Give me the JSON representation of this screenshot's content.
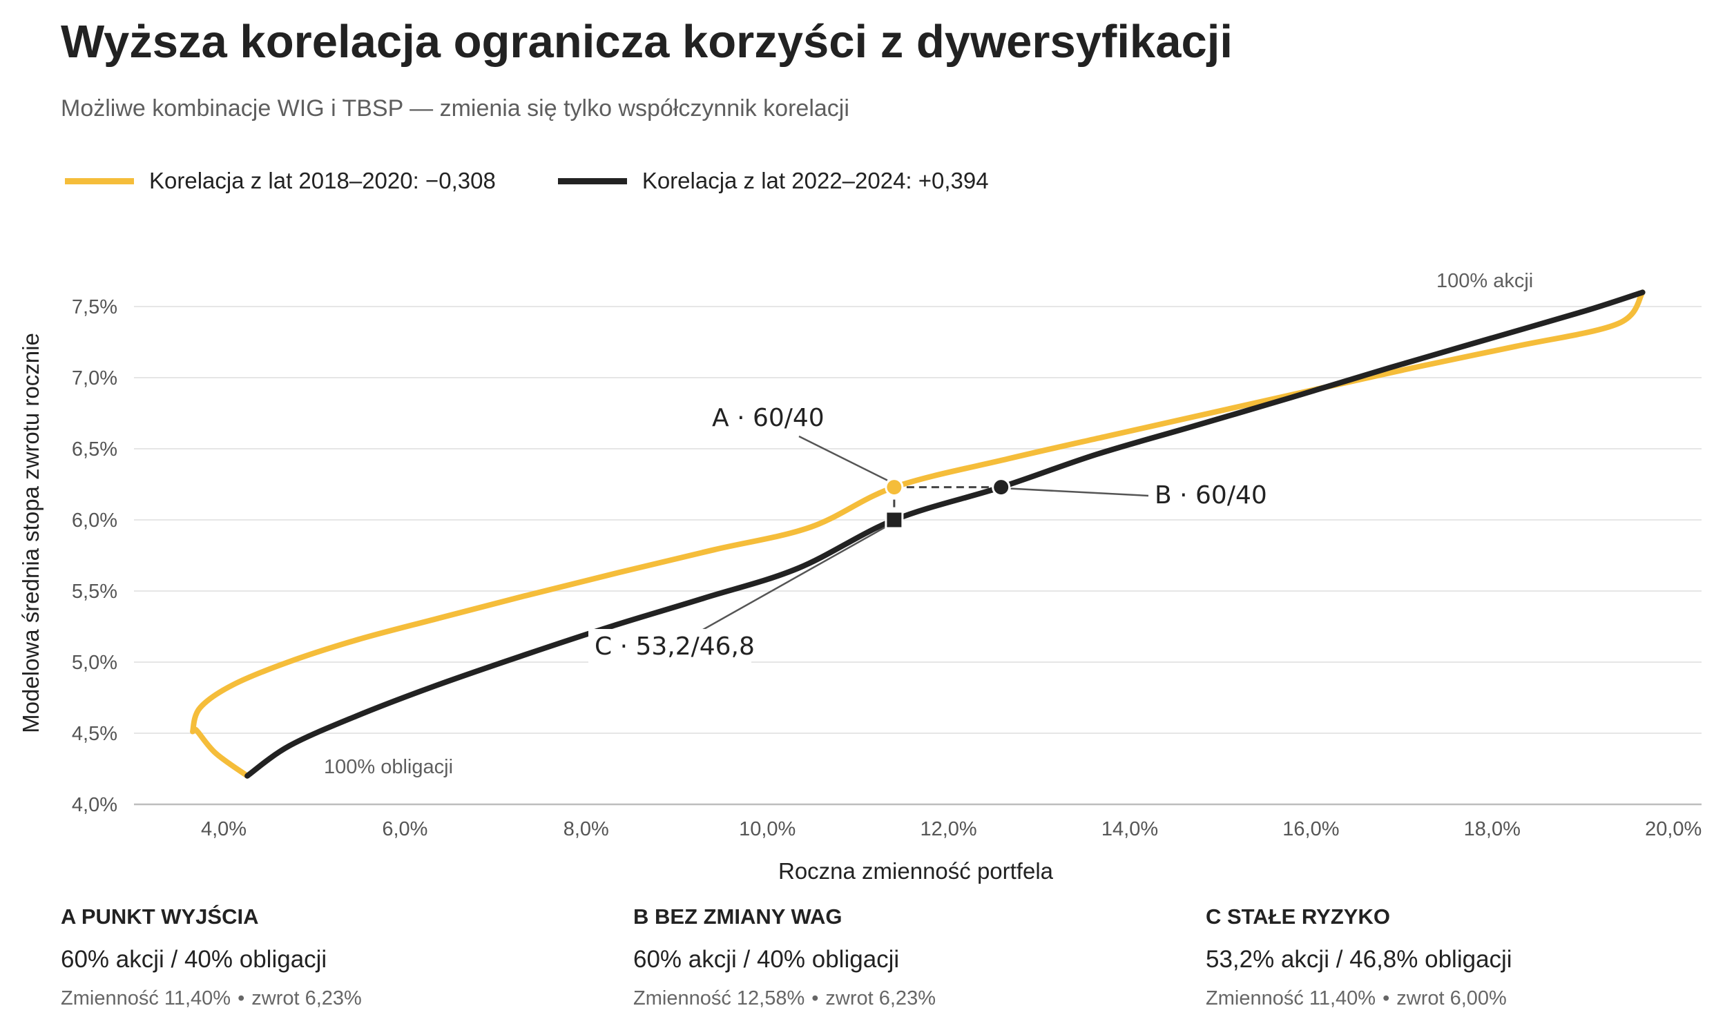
{
  "title": "Wyższa korelacja ogranicza korzyści z dywersyfikacji",
  "subtitle": "Możliwe kombinacje WIG i TBSP — zmienia się tylko współczynnik korelacji",
  "colors": {
    "yellow": "#f5bd3a",
    "dark": "#222222",
    "grid": "#e6e6e6",
    "axis": "#bdbdbd",
    "muted": "#5e5e5e"
  },
  "legend": [
    {
      "label": "Korelacja z lat 2018–2020: −0,308",
      "color": "#f5bd3a"
    },
    {
      "label": "Korelacja z lat 2022–2024: +0,394",
      "color": "#222222"
    }
  ],
  "chart_data": {
    "type": "line",
    "xlabel": "Roczna zmienność portfela",
    "ylabel": "Modelowa średnia stopa zwrotu rocznie",
    "xlim": [
      2.5,
      20.0
    ],
    "ylim": [
      4.0,
      7.85
    ],
    "grid": true,
    "legend_position": "top-left",
    "x_ticks": [
      {
        "value": 4,
        "label": "4,0%"
      },
      {
        "value": 6,
        "label": "6,0%"
      },
      {
        "value": 8,
        "label": "8,0%"
      },
      {
        "value": 10,
        "label": "10,0%"
      },
      {
        "value": 12,
        "label": "12,0%"
      },
      {
        "value": 14,
        "label": "14,0%"
      },
      {
        "value": 16,
        "label": "16,0%"
      },
      {
        "value": 18,
        "label": "18,0%"
      },
      {
        "value": 20,
        "label": "20,0%"
      }
    ],
    "y_ticks": [
      {
        "value": 4.0,
        "label": "4,0%"
      },
      {
        "value": 4.5,
        "label": "4,5%"
      },
      {
        "value": 5.0,
        "label": "5,0%"
      },
      {
        "value": 5.5,
        "label": "5,5%"
      },
      {
        "value": 6.0,
        "label": "6,0%"
      },
      {
        "value": 6.5,
        "label": "6,5%"
      },
      {
        "value": 7.0,
        "label": "7,0%"
      },
      {
        "value": 7.5,
        "label": "7,5%"
      }
    ],
    "series": [
      {
        "name": "Korelacja z lat 2018–2020: −0,308",
        "color": "#f5bd3a",
        "points": [
          [
            4.26,
            4.2
          ],
          [
            3.91,
            4.36
          ],
          [
            3.7,
            4.52
          ],
          [
            3.66,
            4.52
          ],
          [
            3.74,
            4.68
          ],
          [
            4.1,
            4.84
          ],
          [
            4.71,
            5.0
          ],
          [
            5.49,
            5.16
          ],
          [
            6.38,
            5.31
          ],
          [
            7.35,
            5.47
          ],
          [
            8.36,
            5.63
          ],
          [
            9.41,
            5.79
          ],
          [
            10.48,
            5.95
          ],
          [
            11.4,
            6.23
          ],
          [
            12.66,
            6.43
          ],
          [
            13.76,
            6.59
          ],
          [
            14.88,
            6.75
          ],
          [
            16.0,
            6.91
          ],
          [
            17.13,
            7.07
          ],
          [
            18.26,
            7.22
          ],
          [
            19.39,
            7.38
          ],
          [
            19.66,
            7.6
          ]
        ]
      },
      {
        "name": "Korelacja z lat 2022–2024: +0,394",
        "color": "#222222",
        "points": [
          [
            4.26,
            4.2
          ],
          [
            4.72,
            4.41
          ],
          [
            5.46,
            4.62
          ],
          [
            6.32,
            4.83
          ],
          [
            7.27,
            5.04
          ],
          [
            8.27,
            5.25
          ],
          [
            9.3,
            5.45
          ],
          [
            10.34,
            5.66
          ],
          [
            11.4,
            6.0
          ],
          [
            12.58,
            6.23
          ],
          [
            13.63,
            6.46
          ],
          [
            14.71,
            6.66
          ],
          [
            15.78,
            6.86
          ],
          [
            16.87,
            7.07
          ],
          [
            17.95,
            7.27
          ],
          [
            19.03,
            7.47
          ],
          [
            19.66,
            7.6
          ]
        ]
      }
    ],
    "markers": [
      {
        "id": "A",
        "label": "A · 60/40",
        "x": 11.4,
        "y": 6.23,
        "shape": "circle",
        "color": "#f5bd3a"
      },
      {
        "id": "B",
        "label": "B · 60/40",
        "x": 12.58,
        "y": 6.23,
        "shape": "circle",
        "color": "#222222"
      },
      {
        "id": "C",
        "label": "C · 53,2/46,8",
        "x": 11.4,
        "y": 6.0,
        "shape": "square",
        "color": "#222222"
      }
    ],
    "endpoint_labels": {
      "stocks": "100% akcji",
      "bonds": "100% obligacji"
    }
  },
  "cards": [
    {
      "head": "A  PUNKT WYJŚCIA",
      "alloc": "60% akcji / 40% obligacji",
      "vol": "Zmienność 11,40%",
      "ret": "zwrot 6,23%"
    },
    {
      "head": "B  BEZ ZMIANY WAG",
      "alloc": "60% akcji / 40% obligacji",
      "vol": "Zmienność 12,58%",
      "ret": "zwrot 6,23%"
    },
    {
      "head": "C  STAŁE RYZYKO",
      "alloc": "53,2% akcji / 46,8% obligacji",
      "vol": "Zmienność 11,40%",
      "ret": "zwrot 6,00%"
    }
  ],
  "meta_separator": "•"
}
